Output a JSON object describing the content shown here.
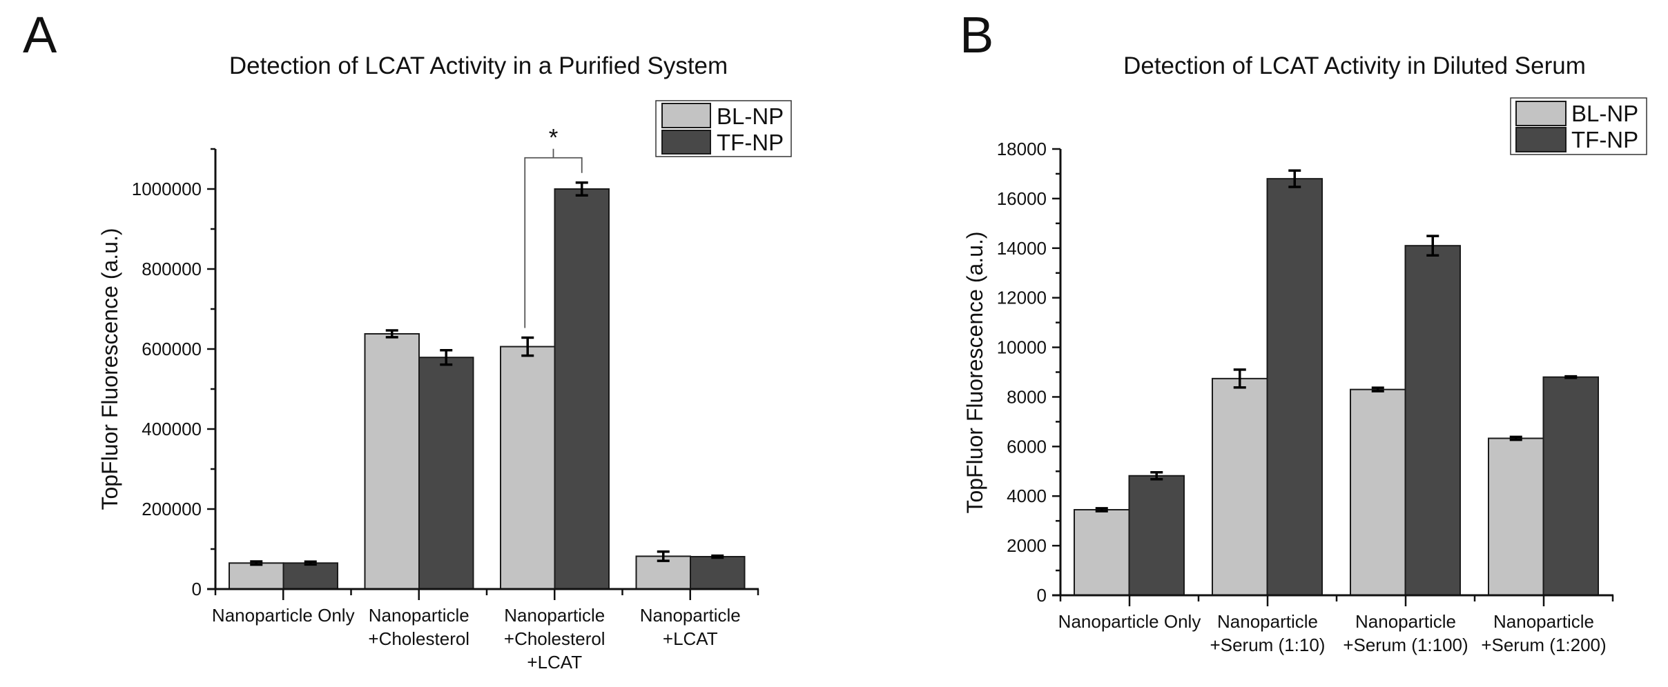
{
  "figure": {
    "panels": [
      "A",
      "B"
    ]
  },
  "chart_data": [
    {
      "panel": "A",
      "type": "bar",
      "title": "Detection of LCAT Activity in a Purified System",
      "xlabel": "",
      "ylabel": "TopFluor Fluorescence (a.u.)",
      "ylim": [
        0,
        1100000
      ],
      "yticks": [
        0,
        200000,
        400000,
        600000,
        800000,
        1000000
      ],
      "ytick_labels": [
        "0",
        "200000",
        "400000",
        "600000",
        "800000",
        "1000000"
      ],
      "yminor_step": 100000,
      "grid": false,
      "legend_position": "top-right",
      "categories": [
        [
          "Nanoparticle Only"
        ],
        [
          "Nanoparticle",
          "+Cholesterol"
        ],
        [
          "Nanoparticle",
          "+Cholesterol",
          "+LCAT"
        ],
        [
          "Nanoparticle",
          "+LCAT"
        ]
      ],
      "series": [
        {
          "name": "BL-NP",
          "color": "#c3c3c3",
          "values": [
            65000,
            638000,
            606000,
            82000
          ],
          "errors": [
            4000,
            8500,
            22500,
            11500
          ]
        },
        {
          "name": "TF-NP",
          "color": "#484848",
          "values": [
            65000,
            579000,
            1000000,
            81000
          ],
          "errors": [
            3500,
            18000,
            16000,
            2500
          ]
        }
      ],
      "annotations": [
        {
          "type": "significance",
          "text": "*",
          "between": [
            {
              "category": 2,
              "series": 0
            },
            {
              "category": 2,
              "series": 1
            }
          ]
        }
      ]
    },
    {
      "panel": "B",
      "type": "bar",
      "title": "Detection of LCAT Activity in Diluted Serum",
      "xlabel": "",
      "ylabel": "TopFluor Fluorescence (a.u.)",
      "ylim": [
        0,
        18000
      ],
      "yticks": [
        0,
        2000,
        4000,
        6000,
        8000,
        10000,
        12000,
        14000,
        16000,
        18000
      ],
      "ytick_labels": [
        "0",
        "2000",
        "4000",
        "6000",
        "8000",
        "10000",
        "12000",
        "14000",
        "16000",
        "18000"
      ],
      "yminor_step": 1000,
      "grid": false,
      "legend_position": "top-right",
      "categories": [
        [
          "Nanoparticle Only"
        ],
        [
          "Nanoparticle",
          "+Serum (1:10)"
        ],
        [
          "Nanoparticle",
          "+Serum (1:100)"
        ],
        [
          "Nanoparticle",
          "+Serum (1:200)"
        ]
      ],
      "series": [
        {
          "name": "BL-NP",
          "color": "#c3c3c3",
          "values": [
            3450,
            8740,
            8300,
            6330
          ],
          "errors": [
            60,
            360,
            70,
            60
          ]
        },
        {
          "name": "TF-NP",
          "color": "#484848",
          "values": [
            4820,
            16800,
            14100,
            8800
          ],
          "errors": [
            140,
            330,
            390,
            30
          ]
        }
      ],
      "annotations": []
    }
  ]
}
